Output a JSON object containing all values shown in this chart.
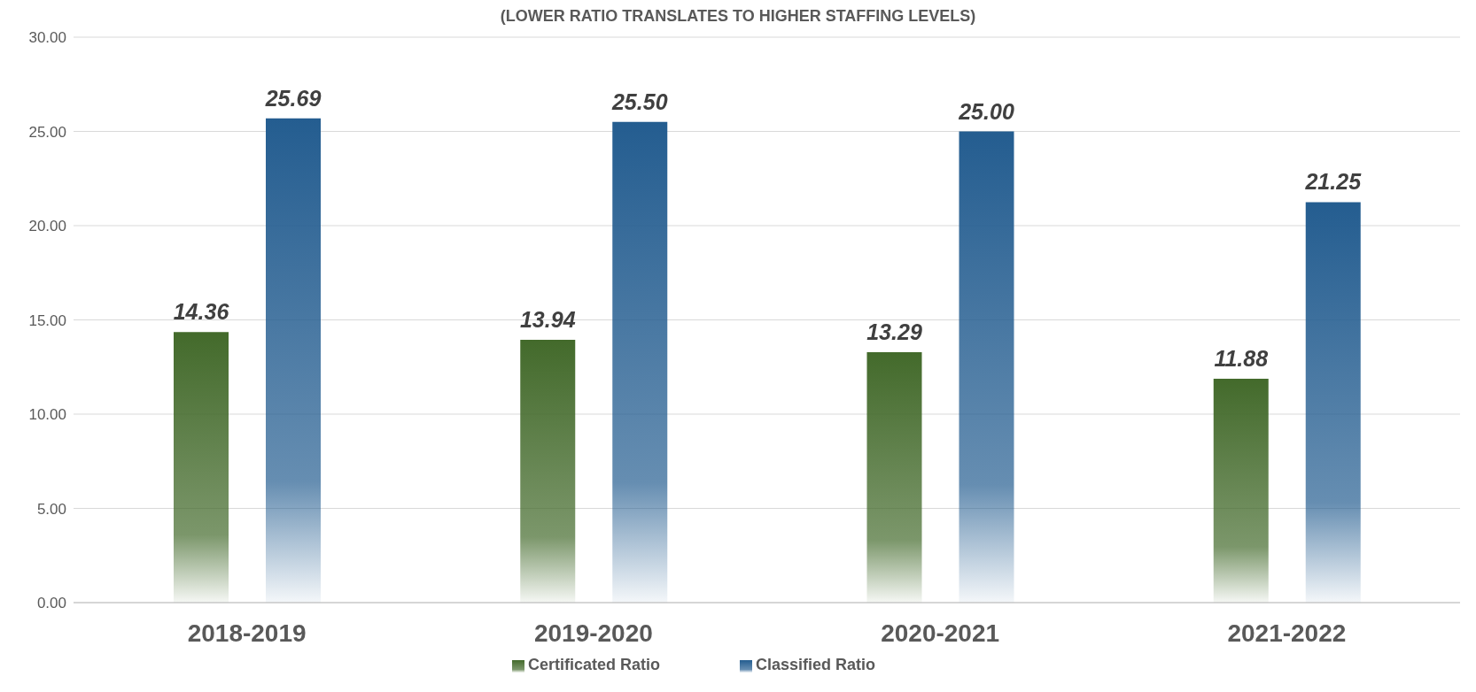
{
  "chart_data": {
    "type": "bar",
    "subtitle": "(LOWER RATIO TRANSLATES TO HIGHER STAFFING LEVELS)",
    "categories": [
      "2018-2019",
      "2019-2020",
      "2020-2021",
      "2021-2022"
    ],
    "series": [
      {
        "name": "Certificated Ratio",
        "color": "#436a2b",
        "values": [
          14.36,
          13.94,
          13.29,
          11.88
        ],
        "value_labels": [
          "14.36",
          "13.94",
          "13.29",
          "11.88"
        ]
      },
      {
        "name": "Classified Ratio",
        "color": "#245d90",
        "values": [
          25.69,
          25.5,
          25.0,
          21.25
        ],
        "value_labels": [
          "25.69",
          "25.50",
          "25.00",
          "21.25"
        ]
      }
    ],
    "ylim": [
      0,
      30
    ],
    "yticks": [
      {
        "value": 0,
        "label": "0.00"
      },
      {
        "value": 5,
        "label": "5.00"
      },
      {
        "value": 10,
        "label": "10.00"
      },
      {
        "value": 15,
        "label": "15.00"
      },
      {
        "value": 20,
        "label": "20.00"
      },
      {
        "value": 25,
        "label": "25.00"
      },
      {
        "value": 30,
        "label": "30.00"
      }
    ],
    "grid": "y",
    "legend": "bottom"
  }
}
